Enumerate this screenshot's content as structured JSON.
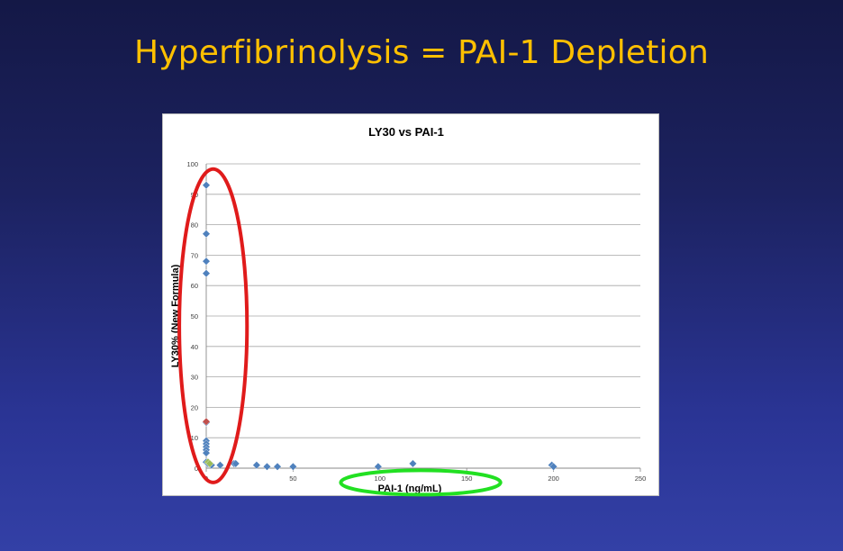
{
  "slide": {
    "title": "Hyperfibrinolysis = PAI-1 Depletion"
  },
  "chart_data": {
    "type": "scatter",
    "title": "LY30 vs PAI-1",
    "xlabel": "PAI-1 (ng/mL)",
    "ylabel": "LY30% (New Formula)",
    "xlim": [
      0,
      250
    ],
    "ylim": [
      0,
      100
    ],
    "x_ticks": [
      0,
      50,
      100,
      150,
      200,
      250
    ],
    "y_ticks": [
      0,
      10,
      20,
      30,
      40,
      50,
      60,
      70,
      80,
      90,
      100
    ],
    "grid": "horizontal",
    "series": [
      {
        "color": "#4f81bd",
        "points": [
          [
            0,
            93
          ],
          [
            0,
            77
          ],
          [
            0,
            68
          ],
          [
            0,
            64
          ],
          [
            0,
            15
          ],
          [
            0,
            9
          ],
          [
            0,
            8
          ],
          [
            0,
            7
          ],
          [
            0,
            6
          ],
          [
            0,
            5
          ],
          [
            0,
            2
          ],
          [
            1,
            1.5
          ],
          [
            3,
            1
          ],
          [
            8,
            1
          ],
          [
            16,
            1.5
          ],
          [
            17,
            1.5
          ],
          [
            29,
            1
          ],
          [
            35,
            0.5
          ],
          [
            41,
            0.5
          ],
          [
            50,
            0.5
          ],
          [
            99,
            0.5
          ],
          [
            119,
            1.5
          ],
          [
            199,
            1
          ],
          [
            200,
            0.5
          ]
        ]
      },
      {
        "color": "#9bbb59",
        "points": [
          [
            1,
            2
          ],
          [
            2,
            1.5
          ]
        ]
      },
      {
        "color": "#c0504d",
        "points": [
          [
            0,
            15.3
          ]
        ]
      }
    ],
    "annotations": [
      {
        "shape": "ellipse",
        "color": "#e01b1b",
        "x_range": [
          -15,
          24
        ],
        "y_range": [
          -5,
          98
        ]
      },
      {
        "shape": "ellipse",
        "color": "#22e022",
        "x_range": [
          78,
          170
        ],
        "y_range": [
          -9,
          -1
        ]
      }
    ]
  }
}
